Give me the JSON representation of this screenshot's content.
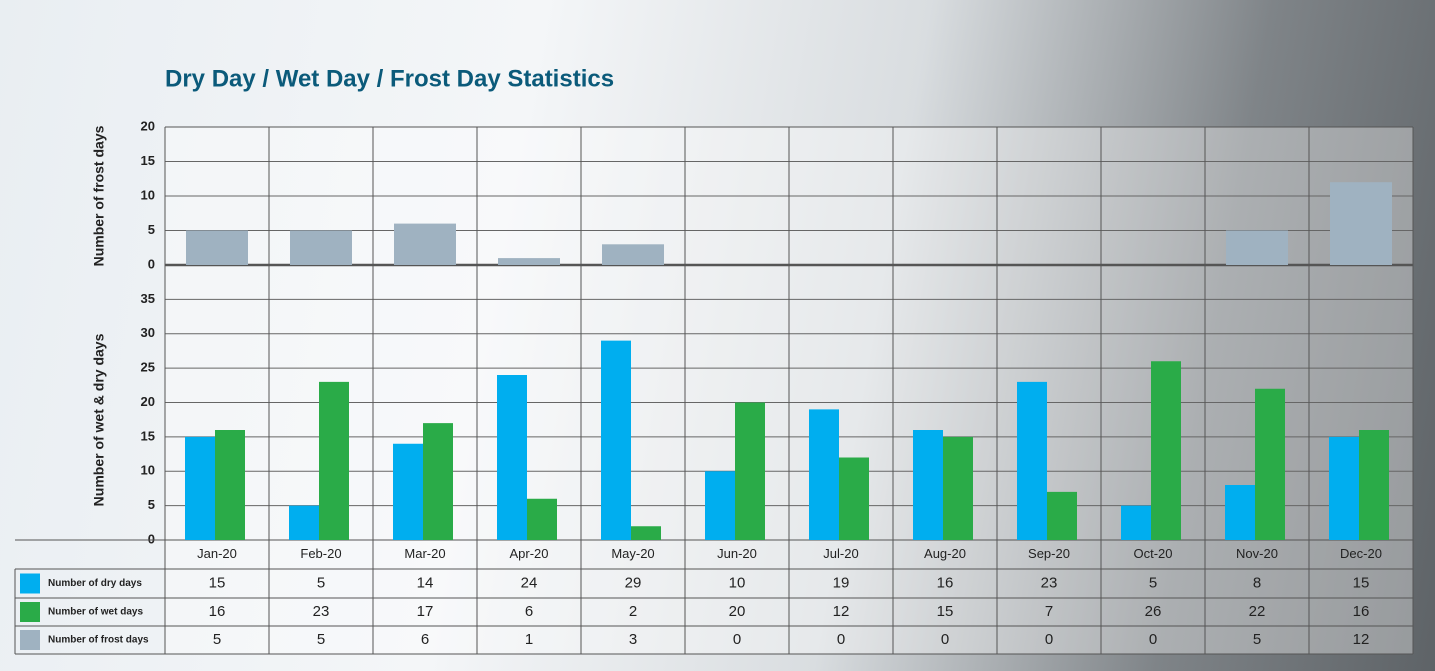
{
  "chart_data": {
    "type": "bar",
    "title": "Dry Day / Wet Day / Frost Day Statistics",
    "y_label": "Number of wet & dry days",
    "y2_label": "Number of frost days",
    "categories": [
      "Jan-20",
      "Feb-20",
      "Mar-20",
      "Apr-20",
      "May-20",
      "Jun-20",
      "Jul-20",
      "Aug-20",
      "Sep-20",
      "Oct-20",
      "Nov-20",
      "Dec-20"
    ],
    "series": [
      {
        "name": "Number of dry days",
        "color": "#00aeef",
        "values": [
          15,
          5,
          14,
          24,
          29,
          10,
          19,
          16,
          23,
          5,
          8,
          15
        ]
      },
      {
        "name": "Number of wet days",
        "color": "#2aab48",
        "values": [
          16,
          23,
          17,
          6,
          2,
          20,
          12,
          15,
          7,
          26,
          22,
          16
        ]
      },
      {
        "name": "Number of frost days",
        "color": "#9fb2c1",
        "axis": "y2",
        "values": [
          5,
          5,
          6,
          1,
          3,
          0,
          0,
          0,
          0,
          0,
          5,
          12
        ]
      }
    ],
    "ylim": [
      0,
      40
    ],
    "yticks": [
      0,
      5,
      10,
      15,
      20,
      25,
      30,
      35
    ],
    "y2lim": [
      0,
      20
    ],
    "y2ticks": [
      0,
      5,
      10,
      15,
      20
    ],
    "grid": true
  }
}
